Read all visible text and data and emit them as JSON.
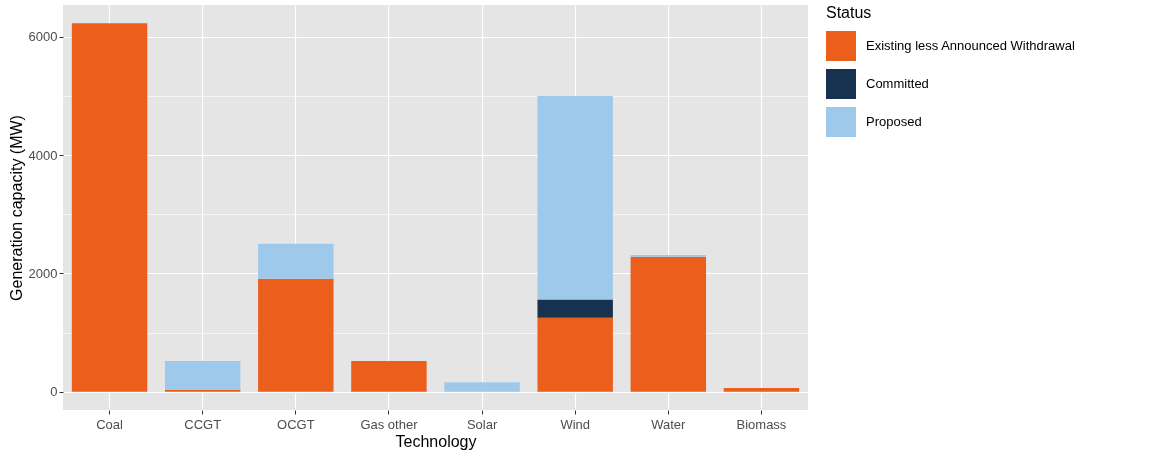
{
  "chart_data": {
    "type": "bar",
    "stacked": true,
    "xlabel": "Technology",
    "ylabel": "Generation capacity (MW)",
    "legend_title": "Status",
    "legend": "right",
    "grid": true,
    "categories": [
      "Coal",
      "CCGT",
      "OCGT",
      "Gas other",
      "Solar",
      "Wind",
      "Water",
      "Biomass"
    ],
    "series": [
      {
        "name": "Existing less Announced Withdrawal",
        "color": "#eb5e1b",
        "values": [
          6230,
          30,
          1910,
          520,
          0,
          1250,
          2280,
          60
        ]
      },
      {
        "name": "Committed",
        "color": "#16324f",
        "values": [
          0,
          0,
          0,
          0,
          0,
          310,
          0,
          0
        ]
      },
      {
        "name": "Proposed",
        "color": "#9fc9eb",
        "values": [
          0,
          490,
          590,
          0,
          160,
          3440,
          30,
          0
        ]
      }
    ],
    "ylim": [
      -310,
      6540
    ],
    "yticks": [
      0,
      {
        "value": 1000,
        "label": null
      },
      2000,
      {
        "value": 3000,
        "label": null
      },
      4000,
      {
        "value": 5000,
        "label": null
      },
      6000
    ]
  }
}
